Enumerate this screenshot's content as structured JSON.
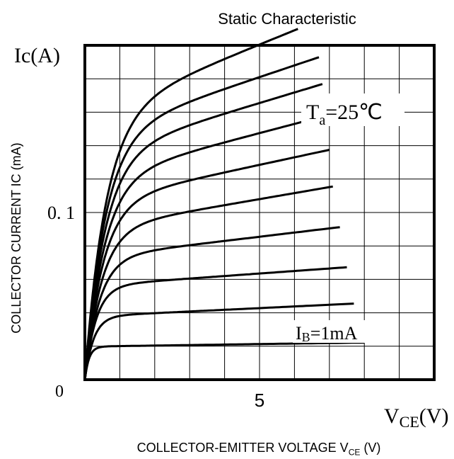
{
  "title": "Static Characteristic",
  "x_title": "COLLECTOR-EMITTER VOLTAGE V",
  "x_title_sub": "CE",
  "x_title_unit": "(V)",
  "y_title": "COLLECTOR CURRENT IC (mA)",
  "chart_data": {
    "type": "line",
    "title": "Static Characteristic",
    "xlabel": "COLLECTOR-EMITTER VOLTAGE VCE (V)",
    "ylabel": "COLLECTOR CURRENT IC (mA)",
    "xlim": [
      0,
      10
    ],
    "ylim": [
      0,
      0.2
    ],
    "grid": true,
    "axis_label_y": "Ic(A)",
    "axis_label_x_main": "V",
    "axis_label_x_sub": "CE",
    "axis_label_x_unit": "(V)",
    "x_ticks": [
      {
        "value": 0,
        "label": "0"
      },
      {
        "value": 5,
        "label": "5"
      }
    ],
    "y_ticks": [
      {
        "value": 0.1,
        "label": "0. 1"
      }
    ],
    "annotations": {
      "temperature_main": "T",
      "temperature_sub": "a",
      "temperature_rest": "=25℃",
      "ib_main": "I",
      "ib_sub": "B",
      "ib_rest": "=1mA"
    },
    "series": [
      {
        "plateau": 0.0198,
        "slope": 0.0003,
        "knee": 0.12,
        "x_end": 8.0
      },
      {
        "plateau": 0.0378,
        "slope": 0.001,
        "knee": 0.25,
        "x_end": 7.7
      },
      {
        "plateau": 0.056,
        "slope": 0.0015,
        "knee": 0.32,
        "x_end": 7.5
      },
      {
        "plateau": 0.073,
        "slope": 0.0025,
        "knee": 0.42,
        "x_end": 7.3
      },
      {
        "plateau": 0.09,
        "slope": 0.0036,
        "knee": 0.48,
        "x_end": 7.1
      },
      {
        "plateau": 0.106,
        "slope": 0.0045,
        "knee": 0.52,
        "x_end": 7.0
      },
      {
        "plateau": 0.12,
        "slope": 0.0055,
        "knee": 0.55,
        "x_end": 6.9
      },
      {
        "plateau": 0.134,
        "slope": 0.0063,
        "knee": 0.57,
        "x_end": 6.8
      },
      {
        "plateau": 0.146,
        "slope": 0.007,
        "knee": 0.58,
        "x_end": 6.7
      },
      {
        "plateau": 0.158,
        "slope": 0.0085,
        "knee": 0.6,
        "x_end": 6.1
      }
    ]
  }
}
